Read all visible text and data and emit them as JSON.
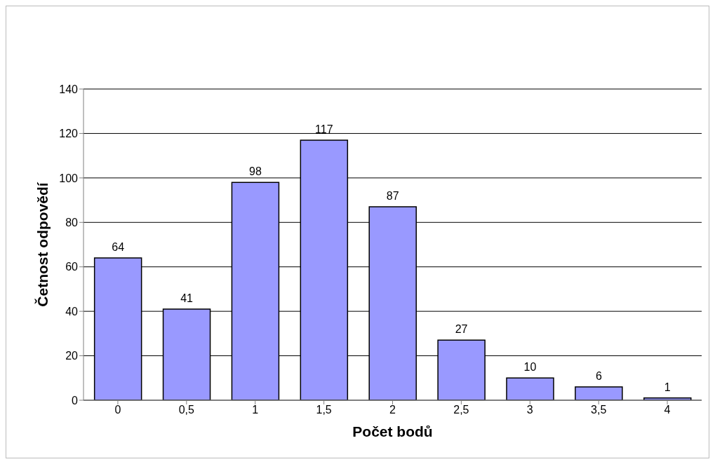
{
  "chart_data": {
    "type": "bar",
    "xlabel": "Počet bodů",
    "ylabel": "Četnost odpovědí",
    "categories": [
      "0",
      "0,5",
      "1",
      "1,5",
      "2",
      "2,5",
      "3",
      "3,5",
      "4"
    ],
    "values": [
      64,
      41,
      98,
      117,
      87,
      27,
      10,
      6,
      1
    ],
    "color": "#9999ff",
    "ylim": [
      0,
      140
    ],
    "yticks": [
      0,
      20,
      40,
      60,
      80,
      100,
      120,
      140
    ],
    "grid": "y",
    "data_labels": true
  }
}
